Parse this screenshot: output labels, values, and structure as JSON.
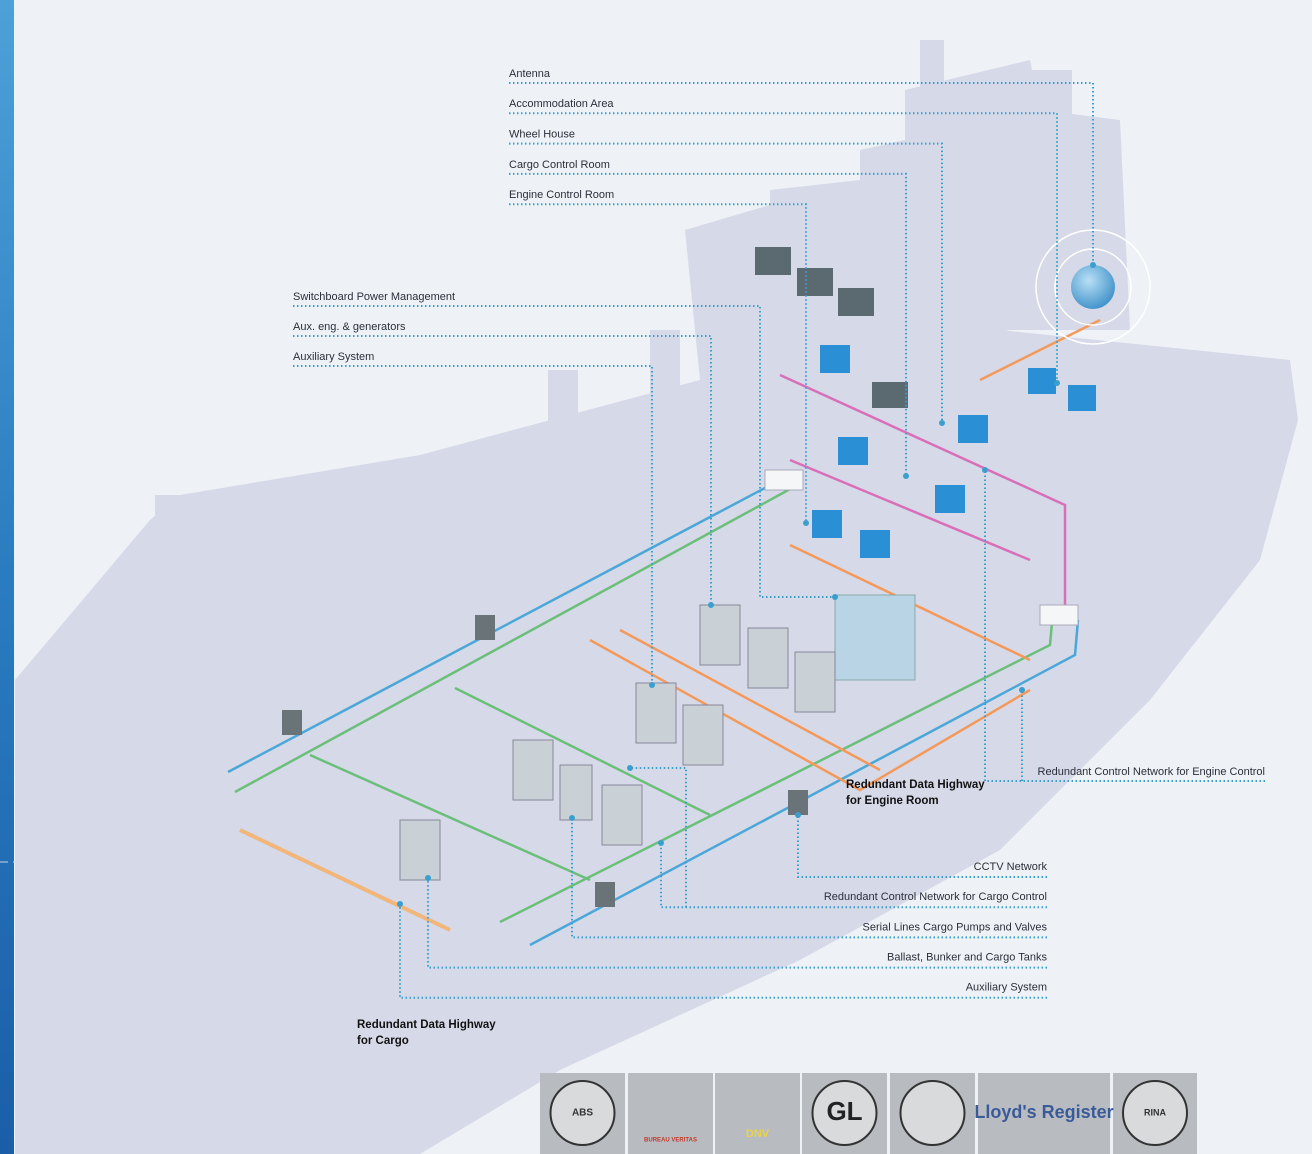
{
  "top_labels": [
    "Antenna",
    "Accommodation Area",
    "Wheel House",
    "Cargo Control Room",
    "Engine Control Room"
  ],
  "left_labels": [
    "Switchboard Power Management",
    "Aux. eng. & generators",
    "Auxiliary System"
  ],
  "right_labels": [
    "Redundant Control Network for Engine Control"
  ],
  "bottom_labels": [
    "CCTV Network",
    "Redundant Control Network for Cargo Control",
    "Serial Lines Cargo Pumps and Valves",
    "Ballast, Bunker and Cargo Tanks",
    "Auxiliary System"
  ],
  "highways": [
    [
      "Redundant Data Highway",
      "for Engine Room"
    ],
    [
      "Redundant Data Highway",
      "for Cargo"
    ]
  ],
  "logos": [
    "ABS",
    "BUREAU VERITAS",
    "DNV",
    "GL",
    "Lloyd's Register",
    "RINA"
  ]
}
